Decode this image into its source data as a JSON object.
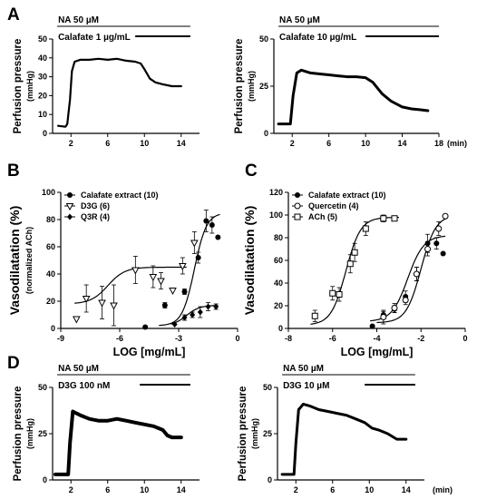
{
  "figure": {
    "panel_letters": [
      "A",
      "B",
      "C",
      "D"
    ]
  },
  "chart_data": [
    {
      "id": "A1",
      "type": "line",
      "panel": "A",
      "ylabel": "Perfusion pressure",
      "yunit": "(mmHg)",
      "xlim": [
        0,
        16
      ],
      "ylim": [
        0,
        50
      ],
      "xticks": [
        2,
        6,
        10,
        14
      ],
      "yticks": [
        0,
        10,
        20,
        30,
        40,
        50
      ],
      "xtick_labels": [
        "2",
        "6",
        "10",
        "14"
      ],
      "ytick_labels": [
        "0",
        "10",
        "20",
        "30",
        "40",
        "50"
      ],
      "xunit": "",
      "conditions": [
        "NA 50 µM",
        "Calafate 1 µg/mL"
      ],
      "bars": [
        {
          "start": 0.5,
          "end": 15
        },
        {
          "start": 9,
          "end": 15
        }
      ],
      "trace_width": 2.2,
      "series": [
        {
          "points": [
            [
              0.6,
              4
            ],
            [
              1.4,
              3.5
            ],
            [
              1.6,
              5
            ],
            [
              1.9,
              18
            ],
            [
              2.1,
              33
            ],
            [
              2.4,
              38
            ],
            [
              3,
              39
            ],
            [
              4,
              39
            ],
            [
              5,
              39.5
            ],
            [
              6,
              39
            ],
            [
              7,
              39.5
            ],
            [
              8,
              38.5
            ],
            [
              9,
              38
            ],
            [
              9.6,
              37
            ],
            [
              10,
              34
            ],
            [
              10.6,
              29
            ],
            [
              11.2,
              27
            ],
            [
              12,
              26
            ],
            [
              13,
              25
            ],
            [
              14,
              25
            ]
          ]
        }
      ]
    },
    {
      "id": "A2",
      "type": "line",
      "panel": "A",
      "ylabel": "Perfusion pressure",
      "yunit": "(mmHg)",
      "xlim": [
        0,
        18
      ],
      "ylim": [
        0,
        50
      ],
      "xticks": [
        2,
        6,
        10,
        14,
        18
      ],
      "yticks": [
        0,
        25,
        50
      ],
      "xtick_labels": [
        "2",
        "6",
        "10",
        "14",
        "18"
      ],
      "ytick_labels": [
        "0",
        "25",
        "50"
      ],
      "xunit": "(min)",
      "conditions": [
        "NA 50 µM",
        "Calafate 10 µg/mL"
      ],
      "bars": [
        {
          "start": 0.5,
          "end": 18
        },
        {
          "start": 10,
          "end": 18
        }
      ],
      "trace_width": 3,
      "series": [
        {
          "points": [
            [
              0.5,
              5
            ],
            [
              1.8,
              5
            ],
            [
              2.1,
              20
            ],
            [
              2.5,
              32
            ],
            [
              3,
              33.5
            ],
            [
              4,
              32
            ],
            [
              5,
              31.5
            ],
            [
              6,
              31
            ],
            [
              7,
              30.5
            ],
            [
              8,
              30
            ],
            [
              9,
              30
            ],
            [
              10,
              29.5
            ],
            [
              10.8,
              27
            ],
            [
              11.8,
              21
            ],
            [
              12.8,
              17
            ],
            [
              14,
              14
            ],
            [
              15,
              13
            ],
            [
              16,
              12.5
            ],
            [
              16.8,
              12
            ]
          ]
        }
      ]
    },
    {
      "id": "B",
      "type": "scatter",
      "panel": "B",
      "ylabel": "Vasodilatation (%)",
      "ylabel2": "(normalized ACh)",
      "xlabel": "LOG [mg/mL]",
      "xlim": [
        -9,
        0
      ],
      "ylim": [
        0,
        100
      ],
      "xticks": [
        -9,
        -6,
        -3,
        0
      ],
      "yticks": [
        0,
        20,
        40,
        60,
        80,
        100
      ],
      "xtick_labels": [
        "-9",
        "-6",
        "-3",
        "0"
      ],
      "ytick_labels": [
        "0",
        "20",
        "40",
        "60",
        "80",
        "100"
      ],
      "legend_position": "top-left",
      "series": [
        {
          "name": "Calafate extract (10)",
          "marker": "circle-filled",
          "x": [
            -4.7,
            -3.7,
            -2.7,
            -2.0,
            -1.6,
            -1.3,
            -1.0
          ],
          "y": [
            1,
            17,
            27,
            52,
            79,
            76,
            67
          ],
          "err": [
            0,
            2,
            2,
            4,
            8,
            6,
            0
          ],
          "fit": {
            "bottom": 2,
            "top": 85,
            "log_ec50": -2.2,
            "hill": 1.4,
            "xmin": -4.0,
            "xmax": -0.9
          }
        },
        {
          "name": "D3G (6)",
          "marker": "triangle-down-open",
          "x": [
            -8.2,
            -7.7,
            -6.9,
            -6.3,
            -5.2,
            -4.3,
            -3.9,
            -3.3,
            -2.8,
            -2.2
          ],
          "y": [
            7,
            22,
            19,
            17,
            43,
            38,
            35,
            28,
            46,
            63
          ],
          "err": [
            0,
            10,
            12,
            15,
            10,
            8,
            6,
            0,
            6,
            8
          ],
          "fit": {
            "bottom": 18,
            "top": 45,
            "log_ec50": -6.6,
            "hill": 1.0,
            "xmin": -8.3,
            "xmax": -2.6
          }
        },
        {
          "name": "Q3R (4)",
          "marker": "diamond-filled",
          "x": [
            -3.2,
            -2.7,
            -2.3,
            -1.9,
            -1.5,
            -1.1
          ],
          "y": [
            3,
            8,
            10,
            12,
            16,
            16
          ],
          "err": [
            0,
            2,
            2,
            4,
            3,
            2
          ],
          "fit": {
            "bottom": 2,
            "top": 17,
            "log_ec50": -2.6,
            "hill": 1.3,
            "xmin": -3.4,
            "xmax": -1.0
          }
        }
      ]
    },
    {
      "id": "C",
      "type": "scatter",
      "panel": "C",
      "ylabel": "Vasodilatation (%)",
      "xlabel": "LOG [mg/mL]",
      "xlim": [
        -8,
        0
      ],
      "ylim": [
        0,
        120
      ],
      "xticks": [
        -8,
        -6,
        -4,
        -2,
        0
      ],
      "yticks": [
        0,
        20,
        40,
        60,
        80,
        100,
        120
      ],
      "xtick_labels": [
        "-8",
        "-6",
        "-4",
        "-2",
        "0"
      ],
      "ytick_labels": [
        "0",
        "20",
        "40",
        "60",
        "80",
        "100",
        "120"
      ],
      "legend_position": "top-left",
      "series": [
        {
          "name": "Calafate extract (10)",
          "marker": "circle-filled",
          "x": [
            -4.2,
            -3.7,
            -3.2,
            -2.7,
            -2.2,
            -1.7,
            -1.3,
            -1.0
          ],
          "y": [
            2,
            12,
            17,
            28,
            48,
            75,
            75,
            66
          ],
          "err": [
            0,
            3,
            3,
            5,
            6,
            8,
            5,
            0
          ],
          "fit": {
            "bottom": 6,
            "top": 82,
            "log_ec50": -2.6,
            "hill": 1.2,
            "xmin": -4.3,
            "xmax": -0.9
          }
        },
        {
          "name": "Quercetin (4)",
          "marker": "circle-open",
          "x": [
            -3.7,
            -3.2,
            -2.7,
            -2.2,
            -1.7,
            -1.2,
            -0.9
          ],
          "y": [
            10,
            18,
            25,
            48,
            70,
            88,
            99
          ],
          "err": [
            6,
            4,
            4,
            6,
            6,
            6,
            0
          ],
          "fit": {
            "bottom": 5,
            "top": 100,
            "log_ec50": -2.0,
            "hill": 1.3,
            "xmin": -4.0,
            "xmax": -0.8
          }
        },
        {
          "name": "ACh (5)",
          "marker": "square-open",
          "x": [
            -6.8,
            -6.0,
            -5.7,
            -5.2,
            -5.0,
            -4.5,
            -3.7,
            -3.2
          ],
          "y": [
            11,
            31,
            30,
            57,
            67,
            88,
            97,
            97
          ],
          "err": [
            5,
            6,
            6,
            8,
            8,
            6,
            3,
            2
          ],
          "fit": {
            "bottom": 3,
            "top": 98,
            "log_ec50": -5.4,
            "hill": 1.3,
            "xmin": -7.0,
            "xmax": -3.0
          }
        }
      ]
    },
    {
      "id": "D1",
      "type": "line",
      "panel": "D",
      "ylabel": "Perfusion pressure",
      "yunit": "(mmHg)",
      "xlim": [
        0,
        16
      ],
      "ylim": [
        0,
        50
      ],
      "xticks": [
        2,
        6,
        10,
        14
      ],
      "yticks": [
        0,
        25,
        50
      ],
      "xtick_labels": [
        "2",
        "6",
        "10",
        "14"
      ],
      "ytick_labels": [
        "0",
        "25",
        "50"
      ],
      "xunit": "",
      "conditions": [
        "NA 50 µM",
        "D3G 100 nM"
      ],
      "bars": [
        {
          "start": 0.5,
          "end": 15
        },
        {
          "start": 9.5,
          "end": 15
        }
      ],
      "trace_width": 4,
      "series": [
        {
          "points": [
            [
              0.3,
              3
            ],
            [
              1.7,
              3
            ],
            [
              1.9,
              20
            ],
            [
              2.2,
              37
            ],
            [
              2.6,
              36
            ],
            [
              3,
              35
            ],
            [
              4,
              33
            ],
            [
              5,
              32
            ],
            [
              6,
              32
            ],
            [
              7,
              33
            ],
            [
              8,
              32
            ],
            [
              9,
              31
            ],
            [
              10,
              30
            ],
            [
              11,
              29
            ],
            [
              12,
              27
            ],
            [
              12.5,
              24
            ],
            [
              13,
              23
            ],
            [
              14,
              23
            ]
          ]
        }
      ]
    },
    {
      "id": "D2",
      "type": "line",
      "panel": "D",
      "ylabel": "Perfusion pressure",
      "yunit": "(mmHg)",
      "xlim": [
        0,
        16
      ],
      "ylim": [
        0,
        50
      ],
      "xticks": [
        2,
        6,
        10,
        14
      ],
      "yticks": [
        0,
        25,
        50
      ],
      "xtick_labels": [
        "2",
        "6",
        "10",
        "14"
      ],
      "ytick_labels": [
        "0",
        "25",
        "50"
      ],
      "xunit": "(min)",
      "conditions": [
        "NA 50 µM",
        "D3G 10 µM"
      ],
      "bars": [
        {
          "start": 0.5,
          "end": 15
        },
        {
          "start": 9.5,
          "end": 15
        }
      ],
      "trace_width": 3,
      "series": [
        {
          "points": [
            [
              0.5,
              3
            ],
            [
              1.8,
              3
            ],
            [
              2.0,
              20
            ],
            [
              2.3,
              38
            ],
            [
              2.8,
              41
            ],
            [
              3.5,
              40
            ],
            [
              4.5,
              38
            ],
            [
              5.5,
              37
            ],
            [
              6.5,
              36
            ],
            [
              7.5,
              35
            ],
            [
              8.5,
              33
            ],
            [
              9.5,
              31
            ],
            [
              10.3,
              28
            ],
            [
              11,
              27
            ],
            [
              12,
              25
            ],
            [
              13,
              22
            ],
            [
              14,
              22
            ]
          ]
        }
      ]
    }
  ]
}
